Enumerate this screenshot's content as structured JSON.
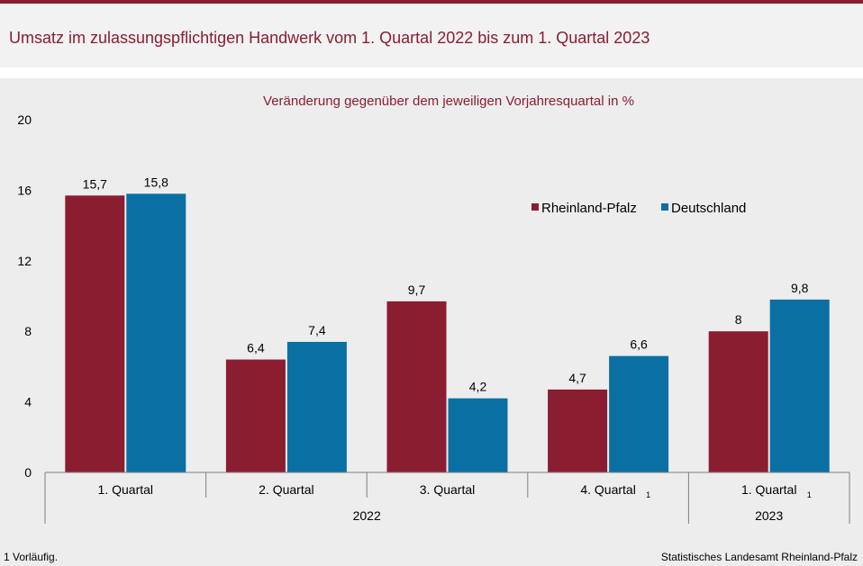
{
  "title": "Umsatz im zulassungspflichtigen Handwerk vom 1. Quartal 2022 bis zum 1. Quartal 2023",
  "footnote": "1 Vorläufig.",
  "source": "Statistisches Landesamt Rheinland-Pfalz",
  "colors": {
    "accent": "#8b1d31",
    "rlp": "#8b1d31",
    "de": "#0a70a3"
  },
  "chart_data": {
    "type": "bar",
    "title": "Veränderung gegenüber dem jeweiligen Vorjahresquartal in %",
    "categories": [
      "1. Quartal",
      "2. Quartal",
      "3. Quartal",
      "4. Quartal",
      "1. Quartal"
    ],
    "category_footnote_marks": [
      "",
      "",
      "",
      "1",
      "1"
    ],
    "year_groups": [
      {
        "label": "2022",
        "from": 0,
        "to": 3
      },
      {
        "label": "2023",
        "from": 4,
        "to": 4
      }
    ],
    "series": [
      {
        "name": "Rheinland-Pfalz",
        "color": "#8b1d31",
        "values": [
          15.7,
          6.4,
          9.7,
          4.7,
          8
        ],
        "labels": [
          "15,7",
          "6,4",
          "9,7",
          "4,7",
          "8"
        ]
      },
      {
        "name": "Deutschland",
        "color": "#0a70a3",
        "values": [
          15.8,
          7.4,
          4.2,
          6.6,
          9.8
        ],
        "labels": [
          "15,8",
          "7,4",
          "4,2",
          "6,6",
          "9,8"
        ]
      }
    ],
    "ylim": [
      0,
      20
    ],
    "yticks": [
      0,
      4,
      8,
      12,
      16,
      20
    ],
    "legend_position": "top-right",
    "grid": false
  }
}
